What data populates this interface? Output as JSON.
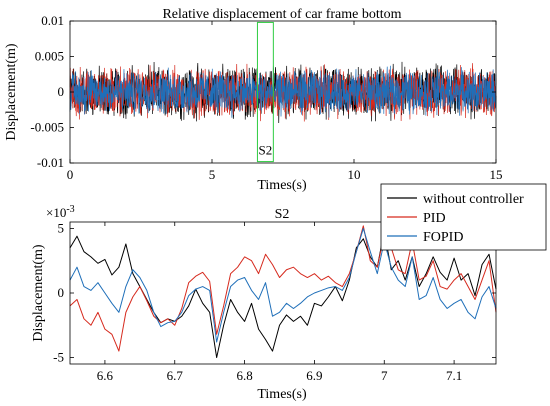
{
  "chart_data": [
    {
      "type": "line",
      "title": "Relative displacement of car frame bottom",
      "xlabel": "Times(s)",
      "ylabel": "Displacement(m)",
      "xlim": [
        0,
        15
      ],
      "ylim": [
        -0.01,
        0.01
      ],
      "xticks": [
        0,
        5,
        10,
        15
      ],
      "xtick_labels": [
        "0",
        "5",
        "10",
        "15"
      ],
      "yticks": [
        0.01,
        0.005,
        0,
        -0.005,
        -0.01
      ],
      "ytick_labels": [
        "0.01",
        "0.005",
        "0",
        "-0.005",
        "-0.01"
      ],
      "grid": false,
      "series": [
        {
          "name": "without controller",
          "color": "#000000",
          "amplitude": 0.0045
        },
        {
          "name": "PID",
          "color": "#d62a1e",
          "amplitude": 0.0043
        },
        {
          "name": "FOPID",
          "color": "#1f6fb9",
          "amplitude": 0.0038
        }
      ],
      "annotation": {
        "label": "S2",
        "x_range": [
          6.6,
          7.16
        ],
        "y_range": [
          -0.0098,
          0.0098
        ],
        "color": "#2ecc40"
      }
    },
    {
      "type": "line",
      "title": "S2",
      "xlabel": "Times(s)",
      "ylabel": "Displacement(m)",
      "y_exponent_label": "×10",
      "y_exponent_value": "-3",
      "xlim": [
        6.55,
        7.16
      ],
      "ylim": [
        -5.5,
        5.5
      ],
      "xticks": [
        6.6,
        6.7,
        6.8,
        6.9,
        7.0,
        7.1
      ],
      "xtick_labels": [
        "6.6",
        "6.7",
        "6.8",
        "6.9",
        "7",
        "7.1"
      ],
      "yticks": [
        5,
        0,
        -5
      ],
      "ytick_labels": [
        "5",
        "0",
        "-5"
      ],
      "grid": false,
      "legend_position": "top-right",
      "series": [
        {
          "name": "without controller",
          "color": "#000000",
          "x": [
            6.55,
            6.56,
            6.57,
            6.58,
            6.59,
            6.6,
            6.61,
            6.62,
            6.63,
            6.64,
            6.65,
            6.66,
            6.67,
            6.68,
            6.69,
            6.7,
            6.71,
            6.72,
            6.73,
            6.74,
            6.75,
            6.76,
            6.77,
            6.78,
            6.79,
            6.8,
            6.81,
            6.82,
            6.83,
            6.84,
            6.85,
            6.86,
            6.87,
            6.88,
            6.89,
            6.9,
            6.91,
            6.92,
            6.93,
            6.94,
            6.95,
            6.96,
            6.97,
            6.98,
            6.99,
            7.0,
            7.01,
            7.02,
            7.03,
            7.04,
            7.05,
            7.06,
            7.07,
            7.08,
            7.09,
            7.1,
            7.11,
            7.12,
            7.13,
            7.14,
            7.15,
            7.16
          ],
          "y": [
            3.5,
            4.4,
            3.2,
            2.8,
            2.3,
            2.6,
            1.4,
            2.0,
            3.8,
            1.5,
            0.5,
            -0.5,
            -1.5,
            -2.3,
            -2.0,
            -2.2,
            -1.8,
            -1.0,
            0.3,
            -0.8,
            -1.5,
            -5.0,
            -2.5,
            -0.5,
            -1.5,
            -2.2,
            -0.8,
            -2.8,
            -3.6,
            -4.5,
            -2.5,
            -1.7,
            -2.2,
            -1.8,
            -2.5,
            -0.8,
            -1.0,
            -0.3,
            0.5,
            -0.6,
            1.0,
            3.5,
            4.2,
            2.8,
            2.0,
            4.8,
            1.8,
            2.5,
            1.0,
            2.8,
            0.5,
            1.5,
            2.8,
            1.6,
            1.0,
            2.7,
            1.0,
            1.5,
            -0.2,
            2.2,
            3.0,
            0.3
          ]
        },
        {
          "name": "PID",
          "color": "#d62a1e",
          "x": [
            6.55,
            6.56,
            6.57,
            6.58,
            6.59,
            6.6,
            6.61,
            6.62,
            6.63,
            6.64,
            6.65,
            6.66,
            6.67,
            6.68,
            6.69,
            6.7,
            6.71,
            6.72,
            6.73,
            6.74,
            6.75,
            6.76,
            6.77,
            6.78,
            6.79,
            6.8,
            6.81,
            6.82,
            6.83,
            6.84,
            6.85,
            6.86,
            6.87,
            6.88,
            6.89,
            6.9,
            6.91,
            6.92,
            6.93,
            6.94,
            6.95,
            6.96,
            6.97,
            6.98,
            6.99,
            7.0,
            7.01,
            7.02,
            7.03,
            7.04,
            7.05,
            7.06,
            7.07,
            7.08,
            7.09,
            7.1,
            7.11,
            7.12,
            7.13,
            7.14,
            7.15,
            7.16
          ],
          "y": [
            -1.0,
            -0.5,
            -2.0,
            -2.5,
            -1.5,
            -2.8,
            -3.2,
            -4.5,
            -1.5,
            -0.3,
            0.5,
            -0.6,
            -1.8,
            -2.3,
            -2.0,
            -2.5,
            -1.2,
            0.8,
            1.3,
            1.6,
            0.9,
            -3.2,
            -1.0,
            1.5,
            2.0,
            2.8,
            2.5,
            1.5,
            3.0,
            2.2,
            1.2,
            1.8,
            2.0,
            1.5,
            1.2,
            1.5,
            1.0,
            1.3,
            0.8,
            0.5,
            1.5,
            3.2,
            5.2,
            2.5,
            2.0,
            4.5,
            3.5,
            1.8,
            1.5,
            4.0,
            1.0,
            1.3,
            2.5,
            0.5,
            0.3,
            1.0,
            1.5,
            0.5,
            -0.5,
            1.0,
            2.5,
            -1.5
          ]
        },
        {
          "name": "FOPID",
          "color": "#1f6fb9",
          "x": [
            6.55,
            6.56,
            6.57,
            6.58,
            6.59,
            6.6,
            6.61,
            6.62,
            6.63,
            6.64,
            6.65,
            6.66,
            6.67,
            6.68,
            6.69,
            6.7,
            6.71,
            6.72,
            6.73,
            6.74,
            6.75,
            6.76,
            6.77,
            6.78,
            6.79,
            6.8,
            6.81,
            6.82,
            6.83,
            6.84,
            6.85,
            6.86,
            6.87,
            6.88,
            6.89,
            6.9,
            6.91,
            6.92,
            6.93,
            6.94,
            6.95,
            6.96,
            6.97,
            6.98,
            6.99,
            7.0,
            7.01,
            7.02,
            7.03,
            7.04,
            7.05,
            7.06,
            7.07,
            7.08,
            7.09,
            7.1,
            7.11,
            7.12,
            7.13,
            7.14,
            7.15,
            7.16
          ],
          "y": [
            1.0,
            2.0,
            0.5,
            0.2,
            0.8,
            0.0,
            -0.8,
            -1.5,
            0.5,
            1.8,
            1.2,
            0.2,
            -1.5,
            -2.6,
            -2.3,
            -2.2,
            -1.5,
            -0.2,
            0.3,
            0.5,
            0.2,
            -3.8,
            -1.5,
            0.5,
            1.0,
            1.2,
            0.2,
            -0.5,
            0.8,
            -1.8,
            -1.5,
            -0.8,
            -1.2,
            -0.8,
            -0.3,
            0.0,
            0.2,
            0.4,
            0.5,
            0.2,
            1.2,
            3.2,
            5.0,
            3.2,
            1.5,
            4.0,
            2.0,
            1.0,
            0.5,
            2.8,
            -0.5,
            -0.2,
            1.2,
            -0.5,
            -1.2,
            -0.8,
            -0.5,
            -1.5,
            -2.0,
            -0.3,
            0.5,
            -1.2
          ]
        }
      ]
    }
  ]
}
